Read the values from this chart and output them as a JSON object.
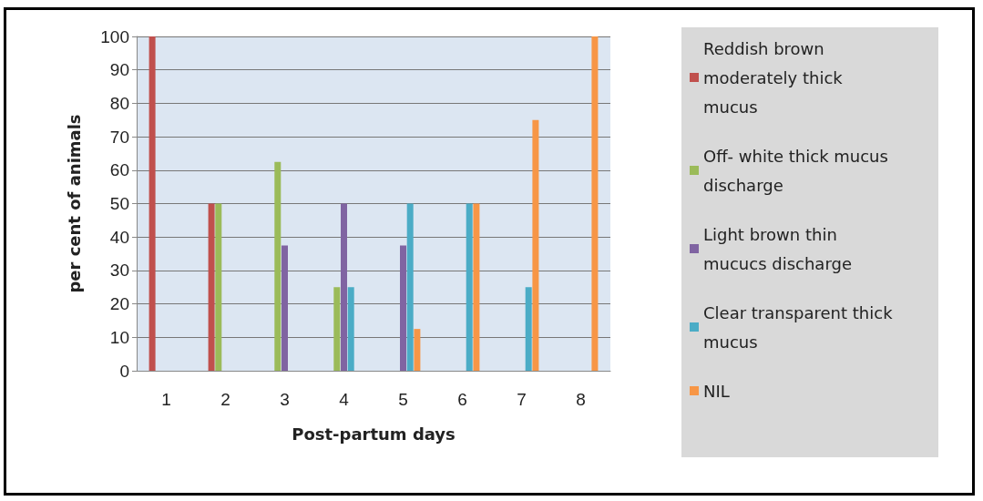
{
  "chart_data": {
    "type": "bar",
    "xlabel": "Post-partum days",
    "ylabel": "per cent of animals",
    "categories": [
      "1",
      "2",
      "3",
      "4",
      "5",
      "6",
      "7",
      "8"
    ],
    "series": [
      {
        "name": "Reddish brown moderately thick mucus",
        "color": "#c0504d",
        "values": [
          100,
          50,
          0,
          0,
          0,
          0,
          0,
          0
        ]
      },
      {
        "name": "Off- white thick mucus discharge",
        "color": "#9bbb59",
        "values": [
          0,
          50,
          62.5,
          25,
          0,
          0,
          0,
          0
        ]
      },
      {
        "name": "Light brown thin mucucs discharge",
        "color": "#8064a2",
        "values": [
          0,
          0,
          37.5,
          50,
          37.5,
          0,
          0,
          0
        ]
      },
      {
        "name": "Clear transparent thick mucus",
        "color": "#4bacc6",
        "values": [
          0,
          0,
          0,
          25,
          50,
          50,
          25,
          0
        ]
      },
      {
        "name": "NIL",
        "color": "#f79646",
        "values": [
          0,
          0,
          0,
          0,
          12.5,
          50,
          75,
          100
        ]
      }
    ],
    "ylim": [
      0,
      100
    ],
    "yticks": [
      0,
      10,
      20,
      30,
      40,
      50,
      60,
      70,
      80,
      90,
      100
    ],
    "grid": "y",
    "legend": "right"
  }
}
